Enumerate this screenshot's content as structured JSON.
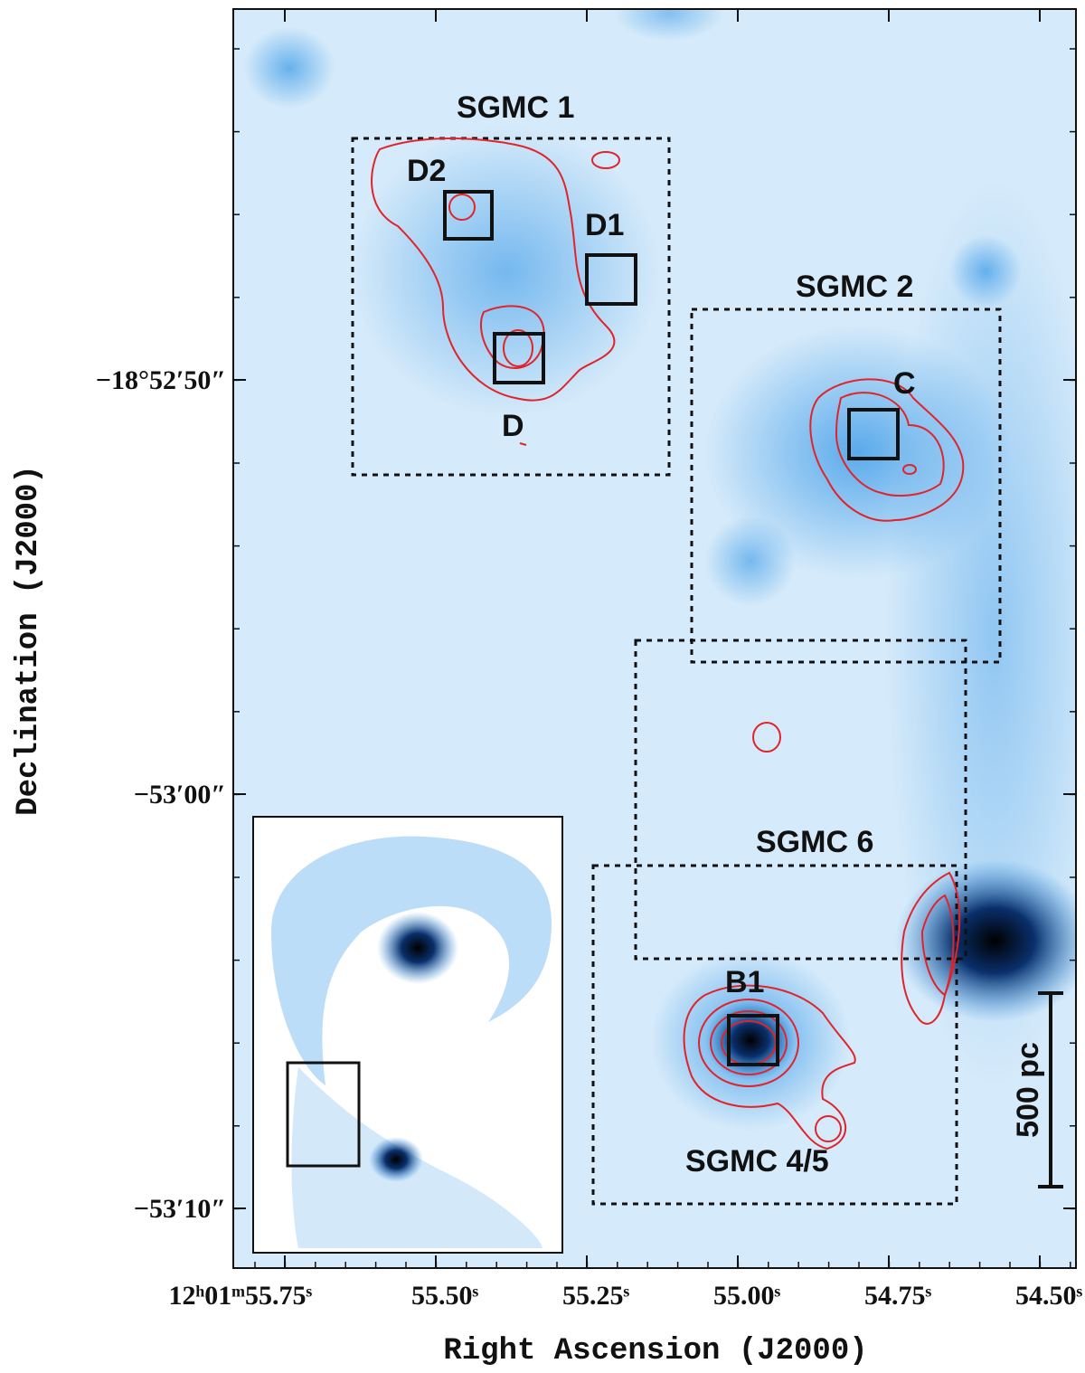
{
  "figure": {
    "x_label": "Right Ascension (J2000)",
    "y_label": "Declination (J2000)",
    "x_ticks": [
      "12ʰ01ᵐ55.75ˢ",
      "55.50ˢ",
      "55.25ˢ",
      "55.00ˢ",
      "54.75ˢ",
      "54.50ˢ"
    ],
    "y_ticks": [
      "−18°52′50″",
      "−53′00″",
      "−53′10″"
    ],
    "regions": [
      "SGMC 1",
      "SGMC 2",
      "SGMC 6",
      "SGMC 4/5"
    ],
    "sources": [
      "D2",
      "D1",
      "D",
      "C",
      "B1"
    ],
    "scale_bar": "500 pc"
  }
}
